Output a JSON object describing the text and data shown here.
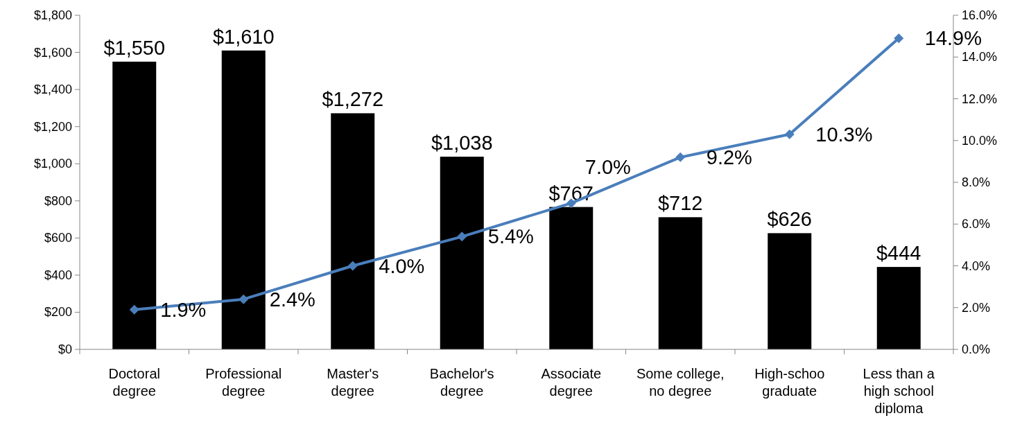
{
  "chart_data": {
    "type": "bar",
    "categories": [
      "Doctoral\ndegree",
      "Professional\ndegree",
      "Master's\ndegree",
      "Bachelor's\ndegree",
      "Associate\ndegree",
      "Some college,\nno degree",
      "High-schoo\ngraduate",
      "Less than a\nhigh school\ndiploma"
    ],
    "series": [
      {
        "color": "#000000",
        "values": [
          1550,
          1610,
          1272,
          1038,
          767,
          712,
          626,
          444
        ],
        "value_labels": [
          "$1,550",
          "$1,610",
          "$1,272",
          "$1,038",
          "$767",
          "$712",
          "$626",
          "$444"
        ]
      },
      {
        "type": "line",
        "axis": "y2",
        "color": "#4a7ebb",
        "marker": "diamond",
        "values": [
          1.9,
          2.4,
          4.0,
          5.4,
          7.0,
          9.2,
          10.3,
          14.9
        ],
        "value_labels": [
          "1.9%",
          "2.4%",
          "4.0%",
          "5.4%",
          "7.0%",
          "9.2%",
          "10.3%",
          "14.9%"
        ]
      }
    ],
    "ylim": [
      0,
      1800
    ],
    "yticks": [
      {
        "value": 0,
        "label": "$0"
      },
      {
        "value": 200,
        "label": "$200"
      },
      {
        "value": 400,
        "label": "$400"
      },
      {
        "value": 600,
        "label": "$600"
      },
      {
        "value": 800,
        "label": "$800"
      },
      {
        "value": 1000,
        "label": "$1,000"
      },
      {
        "value": 1200,
        "label": "$1,200"
      },
      {
        "value": 1400,
        "label": "$1,400"
      },
      {
        "value": 1600,
        "label": "$1,600"
      },
      {
        "value": 1800,
        "label": "$1,800"
      }
    ],
    "y2lim": [
      0,
      16
    ],
    "y2ticks": [
      {
        "value": 0,
        "label": "0.0%"
      },
      {
        "value": 2,
        "label": "2.0%"
      },
      {
        "value": 4,
        "label": "4.0%"
      },
      {
        "value": 6,
        "label": "6.0%"
      },
      {
        "value": 8,
        "label": "8.0%"
      },
      {
        "value": 10,
        "label": "10.0%"
      },
      {
        "value": 12,
        "label": "12.0%"
      },
      {
        "value": 14,
        "label": "14.0%"
      },
      {
        "value": 16,
        "label": "16.0%"
      }
    ],
    "grid": false
  }
}
